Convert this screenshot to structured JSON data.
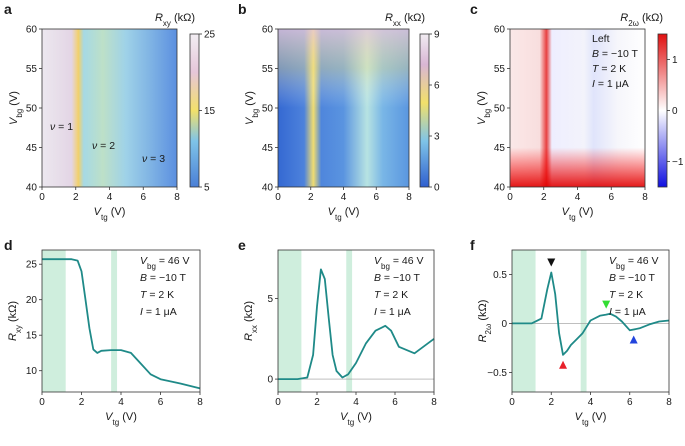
{
  "figure": {
    "panels": [
      {
        "id": "a",
        "label": "a",
        "type": "heatmap",
        "title": "R_xy (kΩ)",
        "xlabel": "V_tg (V)",
        "ylabel": "V_bg (V)",
        "xlim": [
          0,
          8
        ],
        "ylim": [
          40,
          60
        ],
        "xticks": [
          "0",
          "2",
          "4",
          "6",
          "8"
        ],
        "yticks": [
          "40",
          "45",
          "50",
          "55",
          "60"
        ],
        "colorbar": {
          "range": [
            5,
            25
          ],
          "ticks": [
            "25",
            "15",
            "5"
          ]
        },
        "annotations": [
          "ν = 1",
          "ν = 2",
          "ν = 3"
        ]
      },
      {
        "id": "b",
        "label": "b",
        "type": "heatmap",
        "title": "R_xx (kΩ)",
        "xlabel": "V_tg (V)",
        "ylabel": "V_bg (V)",
        "xlim": [
          0,
          8
        ],
        "ylim": [
          40,
          60
        ],
        "xticks": [
          "0",
          "2",
          "4",
          "6",
          "8"
        ],
        "yticks": [
          "40",
          "45",
          "50",
          "55",
          "60"
        ],
        "colorbar": {
          "range": [
            0,
            9
          ],
          "ticks": [
            "9",
            "6",
            "3",
            "0"
          ]
        }
      },
      {
        "id": "c",
        "label": "c",
        "type": "heatmap",
        "title": "R_2ω (kΩ)",
        "xlabel": "V_tg (V)",
        "ylabel": "V_bg (V)",
        "xlim": [
          0,
          8
        ],
        "ylim": [
          40,
          60
        ],
        "xticks": [
          "0",
          "2",
          "4",
          "6",
          "8"
        ],
        "yticks": [
          "40",
          "45",
          "50",
          "55",
          "60"
        ],
        "colorbar": {
          "range": [
            -1.5,
            1.5
          ],
          "ticks": [
            "1",
            "0",
            "−1"
          ]
        },
        "annotations": [
          "Left",
          "B = −10 T",
          "T = 2 K",
          "I = 1 μA"
        ]
      },
      {
        "id": "d",
        "label": "d",
        "type": "line",
        "xlabel": "V_tg (V)",
        "ylabel": "R_xy (kΩ)",
        "xlim": [
          0,
          8
        ],
        "ylim": [
          7,
          27
        ],
        "xticks": [
          "0",
          "2",
          "4",
          "6",
          "8"
        ],
        "yticks": [
          "10",
          "15",
          "20",
          "25"
        ],
        "x": [
          0,
          0.5,
          1.0,
          1.5,
          1.8,
          2.0,
          2.2,
          2.4,
          2.6,
          2.8,
          3.0,
          3.5,
          4.0,
          4.5,
          5.0,
          5.5,
          6.0,
          7.0,
          8.0
        ],
        "y": [
          25.7,
          25.7,
          25.7,
          25.7,
          25.5,
          24,
          20,
          16,
          13,
          12.5,
          12.8,
          12.9,
          12.9,
          12.5,
          11,
          9.5,
          8.8,
          8.2,
          7.5
        ],
        "annotations": [
          "V_bg = 46 V",
          "B = −10 T",
          "T = 2 K",
          "I = 1 μA"
        ],
        "shaded": [
          [
            0,
            1.2
          ],
          [
            3.5,
            3.8
          ]
        ]
      },
      {
        "id": "e",
        "label": "e",
        "type": "line",
        "xlabel": "V_tg (V)",
        "ylabel": "R_xx (kΩ)",
        "xlim": [
          0,
          8
        ],
        "ylim": [
          -0.8,
          8
        ],
        "xticks": [
          "0",
          "2",
          "4",
          "6",
          "8"
        ],
        "yticks": [
          "0",
          "5"
        ],
        "x": [
          0,
          0.5,
          1.0,
          1.5,
          1.8,
          2.0,
          2.2,
          2.4,
          2.6,
          2.8,
          3.0,
          3.3,
          3.6,
          4.0,
          4.5,
          5.0,
          5.5,
          5.8,
          6.2,
          7.0,
          8.0
        ],
        "y": [
          0,
          0,
          0,
          0.1,
          1.5,
          4.5,
          6.8,
          6.2,
          3.8,
          1.5,
          0.5,
          0.1,
          0.3,
          1.0,
          2.2,
          3.0,
          3.3,
          3.0,
          2.0,
          1.6,
          2.5
        ],
        "annotations": [
          "V_bg = 46 V",
          "B = −10 T",
          "T = 2 K",
          "I = 1 μA"
        ],
        "shaded": [
          [
            0,
            1.2
          ],
          [
            3.5,
            3.8
          ]
        ]
      },
      {
        "id": "f",
        "label": "f",
        "type": "line",
        "xlabel": "V_tg (V)",
        "ylabel": "R_2ω (kΩ)",
        "xlim": [
          0,
          8
        ],
        "ylim": [
          -0.7,
          0.75
        ],
        "xticks": [
          "0",
          "2",
          "4",
          "6",
          "8"
        ],
        "yticks": [
          "0.5",
          "0",
          "−0.5"
        ],
        "x": [
          0,
          0.5,
          1.0,
          1.5,
          1.8,
          2.0,
          2.2,
          2.4,
          2.6,
          2.8,
          3.0,
          3.3,
          3.6,
          4.0,
          4.5,
          4.8,
          5.0,
          5.3,
          5.6,
          6.0,
          6.5,
          7.0,
          7.5,
          8.0
        ],
        "y": [
          0,
          0,
          0,
          0.05,
          0.35,
          0.52,
          0.3,
          -0.1,
          -0.32,
          -0.28,
          -0.22,
          -0.16,
          -0.1,
          0.03,
          0.08,
          0.09,
          0.1,
          0.07,
          0.02,
          -0.07,
          -0.05,
          -0.01,
          0.02,
          0.03
        ],
        "annotations": [
          "V_bg = 46 V",
          "B = −10 T",
          "T = 2 K",
          "I = 1 μA"
        ],
        "shaded": [
          [
            0,
            1.2
          ],
          [
            3.5,
            3.8
          ]
        ],
        "markers": [
          {
            "x": 2.0,
            "color": "#111111"
          },
          {
            "x": 2.6,
            "color": "#e8202a"
          },
          {
            "x": 4.8,
            "color": "#33dd33"
          },
          {
            "x": 6.2,
            "color": "#2244dd"
          }
        ]
      }
    ]
  }
}
